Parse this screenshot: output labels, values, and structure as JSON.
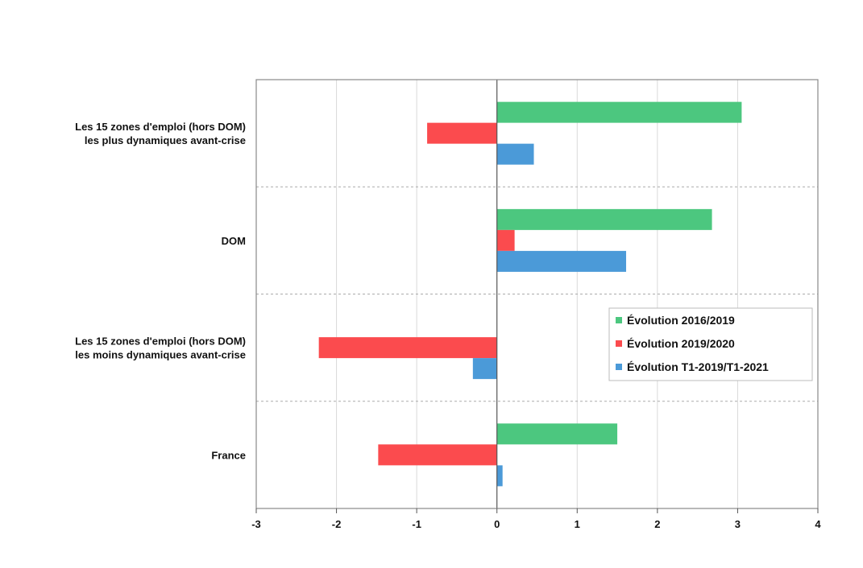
{
  "chart_data": {
    "type": "bar",
    "orientation": "horizontal",
    "categories": [
      [
        "Les 15 zones d'emploi (hors DOM)",
        "les plus dynamiques avant-crise"
      ],
      [
        "DOM"
      ],
      [
        "Les 15 zones d'emploi (hors DOM)",
        "les moins dynamiques avant-crise"
      ],
      [
        "France"
      ]
    ],
    "series": [
      {
        "name": "Évolution 2016/2019",
        "color": "#4cc77f",
        "values": [
          3.05,
          2.68,
          0.0,
          1.5
        ]
      },
      {
        "name": "Évolution 2019/2020",
        "color": "#fb4b4e",
        "values": [
          -0.87,
          0.22,
          -2.22,
          -1.48
        ]
      },
      {
        "name": "Évolution T1-2019/T1-2021",
        "color": "#4b9ad8",
        "values": [
          0.46,
          1.61,
          -0.3,
          0.07
        ]
      }
    ],
    "xlim": [
      -3,
      4
    ],
    "xticks": [
      "-3",
      "-2",
      "-1",
      "0",
      "1",
      "2",
      "3",
      "4"
    ],
    "title": "",
    "xlabel": "",
    "ylabel": "",
    "grid": "vertical",
    "legend_position": "right-middle"
  }
}
